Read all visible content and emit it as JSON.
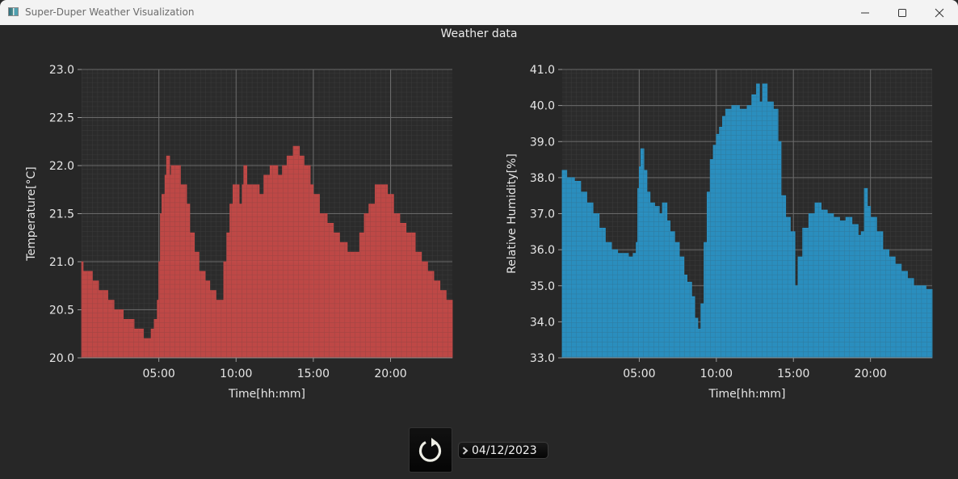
{
  "window": {
    "title": "Super-Duper Weather Visualization",
    "controls": [
      "minimize",
      "maximize",
      "close"
    ]
  },
  "main": {
    "title": "Weather data"
  },
  "controls": {
    "refresh_icon": "refresh-icon",
    "date_value": "04/12/2023",
    "date_prefix_icon": "chevron-right-icon"
  },
  "colors": {
    "background": "#272727",
    "plot_background": "#2b2b2b",
    "temperature_fill": "#c64a48",
    "humidity_fill": "#2a94c6",
    "grid_major": "#6a6a6a",
    "grid_minor": "#3a3a3a",
    "text": "#e6e6e6"
  },
  "chart_data": [
    {
      "type": "area",
      "title": "",
      "xlabel": "Time[hh:mm]",
      "ylabel": "Temperature[°C]",
      "xlim": [
        0,
        24
      ],
      "ylim": [
        20.0,
        23.0
      ],
      "x_ticks": [
        "05:00",
        "10:00",
        "15:00",
        "20:00"
      ],
      "y_ticks": [
        "20.0",
        "20.5",
        "21.0",
        "21.5",
        "22.0",
        "22.5",
        "23.0"
      ],
      "grid": true,
      "legend": null,
      "color": "#c64a48",
      "series": [
        {
          "name": "Temperature",
          "x": [
            0.0,
            0.1,
            0.7,
            1.1,
            1.7,
            2.1,
            2.7,
            3.4,
            4.0,
            4.5,
            4.7,
            4.9,
            5.0,
            5.1,
            5.2,
            5.4,
            5.5,
            5.7,
            5.8,
            6.2,
            6.4,
            6.8,
            7.0,
            7.3,
            7.6,
            8.0,
            8.3,
            8.7,
            9.0,
            9.2,
            9.4,
            9.6,
            9.8,
            10.2,
            10.4,
            10.5,
            10.7,
            11.0,
            11.5,
            11.8,
            12.2,
            12.7,
            13.0,
            13.3,
            13.7,
            14.1,
            14.4,
            14.8,
            15.0,
            15.4,
            15.9,
            16.3,
            16.7,
            17.2,
            17.7,
            18.0,
            18.3,
            18.6,
            19.0,
            19.4,
            19.8,
            20.2,
            20.6,
            21.0,
            21.6,
            22.0,
            22.4,
            22.8,
            23.2,
            23.6,
            24.0
          ],
          "y": [
            21.0,
            20.9,
            20.8,
            20.7,
            20.6,
            20.5,
            20.4,
            20.3,
            20.2,
            20.3,
            20.4,
            20.6,
            21.0,
            21.5,
            21.7,
            21.9,
            22.1,
            21.9,
            22.0,
            22.0,
            21.8,
            21.6,
            21.3,
            21.1,
            20.9,
            20.8,
            20.7,
            20.6,
            20.6,
            21.0,
            21.3,
            21.6,
            21.8,
            21.6,
            21.8,
            22.0,
            21.8,
            21.8,
            21.7,
            21.9,
            22.0,
            21.9,
            22.0,
            22.1,
            22.2,
            22.1,
            22.0,
            21.8,
            21.7,
            21.5,
            21.4,
            21.3,
            21.2,
            21.1,
            21.1,
            21.3,
            21.5,
            21.6,
            21.8,
            21.8,
            21.7,
            21.5,
            21.4,
            21.3,
            21.1,
            21.0,
            20.9,
            20.8,
            20.7,
            20.6,
            20.5
          ]
        }
      ]
    },
    {
      "type": "area",
      "title": "",
      "xlabel": "Time[hh:mm]",
      "ylabel": "Relative Humidity[%]",
      "xlim": [
        0,
        24
      ],
      "ylim": [
        33.0,
        41.0
      ],
      "x_ticks": [
        "05:00",
        "10:00",
        "15:00",
        "20:00"
      ],
      "y_ticks": [
        "33.0",
        "34.0",
        "35.0",
        "36.0",
        "37.0",
        "38.0",
        "39.0",
        "40.0",
        "41.0"
      ],
      "grid": true,
      "legend": null,
      "color": "#2a94c6",
      "series": [
        {
          "name": "Relative Humidity",
          "x": [
            0.0,
            0.3,
            0.8,
            1.2,
            1.6,
            2.0,
            2.4,
            2.8,
            3.2,
            3.6,
            4.0,
            4.3,
            4.6,
            4.8,
            4.9,
            5.0,
            5.1,
            5.3,
            5.5,
            5.7,
            6.0,
            6.3,
            6.5,
            6.8,
            7.0,
            7.3,
            7.6,
            7.9,
            8.1,
            8.4,
            8.6,
            8.8,
            9.0,
            9.2,
            9.4,
            9.6,
            9.8,
            10.0,
            10.2,
            10.4,
            10.6,
            11.0,
            11.5,
            12.0,
            12.3,
            12.6,
            12.8,
            13.0,
            13.3,
            13.7,
            14.0,
            14.2,
            14.5,
            14.8,
            15.1,
            15.3,
            15.6,
            16.0,
            16.4,
            16.8,
            17.2,
            17.6,
            18.0,
            18.4,
            18.8,
            19.2,
            19.4,
            19.6,
            19.8,
            20.0,
            20.4,
            20.8,
            21.2,
            21.6,
            22.0,
            22.4,
            22.8,
            23.2,
            23.6,
            24.0
          ],
          "y": [
            38.2,
            38.0,
            37.9,
            37.6,
            37.3,
            37.0,
            36.6,
            36.2,
            36.0,
            35.9,
            35.9,
            35.8,
            35.9,
            36.2,
            37.7,
            38.3,
            38.8,
            38.2,
            37.6,
            37.3,
            37.2,
            37.0,
            37.3,
            36.8,
            36.5,
            36.2,
            35.8,
            35.3,
            35.1,
            34.7,
            34.1,
            33.8,
            34.5,
            36.2,
            37.6,
            38.5,
            38.9,
            39.2,
            39.4,
            39.7,
            39.9,
            40.0,
            39.9,
            40.0,
            40.3,
            40.6,
            40.1,
            40.6,
            40.1,
            39.9,
            39.0,
            37.5,
            36.9,
            36.5,
            35.0,
            35.8,
            36.6,
            37.0,
            37.3,
            37.1,
            37.0,
            36.9,
            36.8,
            36.9,
            36.7,
            36.4,
            36.5,
            37.7,
            37.2,
            36.9,
            36.5,
            36.0,
            35.8,
            35.6,
            35.4,
            35.2,
            35.0,
            35.0,
            34.9,
            34.8
          ]
        }
      ]
    }
  ]
}
